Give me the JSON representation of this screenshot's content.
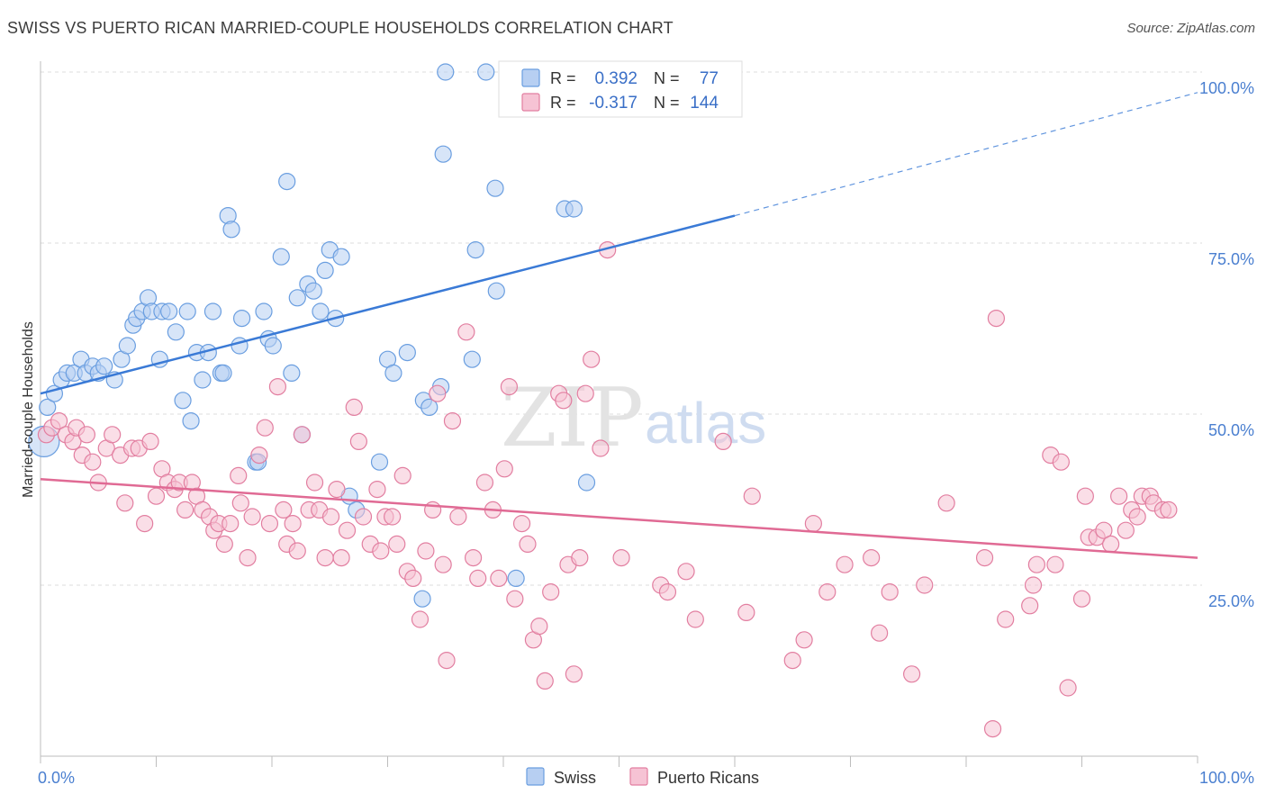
{
  "title": "SWISS VS PUERTO RICAN MARRIED-COUPLE HOUSEHOLDS CORRELATION CHART",
  "source": "Source: ZipAtlas.com",
  "watermark": {
    "zip": "ZIP",
    "atlas": "atlas"
  },
  "legend": {
    "r_label": "R =",
    "n_label": "N =",
    "items": [
      {
        "name": "Swiss",
        "r": "0.392",
        "n": "77",
        "color": "#6a9ee0",
        "fill": "#b7cff2"
      },
      {
        "name": "Puerto Ricans",
        "r": "-0.317",
        "n": "144",
        "color": "#e27ea0",
        "fill": "#f6c3d4"
      }
    ]
  },
  "chart_data": {
    "type": "scatter",
    "ylabel": "Married-couple Households",
    "xlabel": "",
    "x_tick_labels": [
      "0.0%",
      "100.0%"
    ],
    "y_tick_labels": [
      {
        "value": 25,
        "label": "25.0%"
      },
      {
        "value": 50,
        "label": "50.0%"
      },
      {
        "value": 75,
        "label": "75.0%"
      },
      {
        "value": 100,
        "label": "100.0%"
      }
    ],
    "xlim": [
      0,
      100
    ],
    "ylim": [
      0,
      100
    ],
    "grid": true,
    "legend_position": "top-center",
    "series": [
      {
        "name": "Swiss",
        "color": "#3a7ad6",
        "points": [
          [
            0.3,
            46
          ],
          [
            0.6,
            51
          ],
          [
            1.2,
            53
          ],
          [
            1.8,
            55
          ],
          [
            2.3,
            56
          ],
          [
            2.9,
            56
          ],
          [
            3.5,
            58
          ],
          [
            3.9,
            56
          ],
          [
            4.5,
            57
          ],
          [
            5.0,
            56
          ],
          [
            5.5,
            57
          ],
          [
            6.4,
            55
          ],
          [
            7.0,
            58
          ],
          [
            7.5,
            60
          ],
          [
            8.0,
            63
          ],
          [
            8.3,
            64
          ],
          [
            8.8,
            65
          ],
          [
            9.3,
            67
          ],
          [
            9.6,
            65
          ],
          [
            10.3,
            58
          ],
          [
            10.5,
            65
          ],
          [
            11.1,
            65
          ],
          [
            11.7,
            62
          ],
          [
            12.3,
            52
          ],
          [
            12.7,
            65
          ],
          [
            13.0,
            49
          ],
          [
            13.5,
            59
          ],
          [
            14.0,
            55
          ],
          [
            14.5,
            59
          ],
          [
            14.9,
            65
          ],
          [
            15.6,
            56
          ],
          [
            15.8,
            56
          ],
          [
            16.2,
            79
          ],
          [
            16.5,
            77
          ],
          [
            17.2,
            60
          ],
          [
            17.4,
            64
          ],
          [
            18.6,
            43
          ],
          [
            18.8,
            43
          ],
          [
            19.3,
            65
          ],
          [
            19.7,
            61
          ],
          [
            20.1,
            60
          ],
          [
            20.8,
            73
          ],
          [
            21.3,
            84
          ],
          [
            21.7,
            56
          ],
          [
            22.2,
            67
          ],
          [
            22.6,
            47
          ],
          [
            23.1,
            69
          ],
          [
            23.6,
            68
          ],
          [
            24.2,
            65
          ],
          [
            24.6,
            71
          ],
          [
            25.0,
            74
          ],
          [
            25.5,
            64
          ],
          [
            26.0,
            73
          ],
          [
            26.7,
            38
          ],
          [
            27.3,
            36
          ],
          [
            29.3,
            43
          ],
          [
            30.0,
            58
          ],
          [
            30.5,
            56
          ],
          [
            31.7,
            59
          ],
          [
            33.1,
            52
          ],
          [
            33.6,
            51
          ],
          [
            34.6,
            54
          ],
          [
            34.8,
            88
          ],
          [
            37.3,
            58
          ],
          [
            37.6,
            74
          ],
          [
            39.4,
            68
          ],
          [
            39.3,
            83
          ],
          [
            41.1,
            26
          ],
          [
            41.8,
            100
          ],
          [
            44.5,
            100
          ],
          [
            45.5,
            100
          ],
          [
            45.3,
            80
          ],
          [
            46.1,
            80
          ],
          [
            47.2,
            40
          ],
          [
            33.0,
            23
          ],
          [
            35.0,
            100
          ],
          [
            38.5,
            100
          ]
        ]
      },
      {
        "name": "Puerto Ricans",
        "color": "#e06a94",
        "points": [
          [
            0.5,
            47
          ],
          [
            1.0,
            48
          ],
          [
            1.6,
            49
          ],
          [
            2.2,
            47
          ],
          [
            2.8,
            46
          ],
          [
            3.1,
            48
          ],
          [
            3.6,
            44
          ],
          [
            4.0,
            47
          ],
          [
            4.5,
            43
          ],
          [
            5.0,
            40
          ],
          [
            5.7,
            45
          ],
          [
            6.2,
            47
          ],
          [
            6.9,
            44
          ],
          [
            7.3,
            37
          ],
          [
            7.9,
            45
          ],
          [
            8.5,
            45
          ],
          [
            9.0,
            34
          ],
          [
            9.5,
            46
          ],
          [
            10.0,
            38
          ],
          [
            10.5,
            42
          ],
          [
            11.0,
            40
          ],
          [
            11.6,
            39
          ],
          [
            12.0,
            40
          ],
          [
            12.5,
            36
          ],
          [
            13.1,
            40
          ],
          [
            13.5,
            38
          ],
          [
            14.0,
            36
          ],
          [
            14.6,
            35
          ],
          [
            15.0,
            33
          ],
          [
            15.4,
            34
          ],
          [
            15.9,
            31
          ],
          [
            16.4,
            34
          ],
          [
            17.1,
            41
          ],
          [
            17.3,
            37
          ],
          [
            17.9,
            29
          ],
          [
            18.3,
            35
          ],
          [
            18.9,
            44
          ],
          [
            19.4,
            48
          ],
          [
            19.8,
            34
          ],
          [
            20.5,
            54
          ],
          [
            21.0,
            36
          ],
          [
            21.3,
            31
          ],
          [
            21.8,
            34
          ],
          [
            22.2,
            30
          ],
          [
            22.6,
            47
          ],
          [
            23.2,
            36
          ],
          [
            23.7,
            40
          ],
          [
            24.1,
            36
          ],
          [
            24.6,
            29
          ],
          [
            25.1,
            35
          ],
          [
            25.6,
            39
          ],
          [
            26.0,
            29
          ],
          [
            26.5,
            33
          ],
          [
            27.1,
            51
          ],
          [
            27.5,
            46
          ],
          [
            27.9,
            35
          ],
          [
            28.5,
            31
          ],
          [
            29.1,
            39
          ],
          [
            29.4,
            30
          ],
          [
            29.8,
            35
          ],
          [
            30.4,
            35
          ],
          [
            30.8,
            31
          ],
          [
            31.3,
            41
          ],
          [
            31.7,
            27
          ],
          [
            32.2,
            26
          ],
          [
            32.8,
            20
          ],
          [
            33.3,
            30
          ],
          [
            33.9,
            36
          ],
          [
            34.3,
            53
          ],
          [
            34.8,
            28
          ],
          [
            35.1,
            14
          ],
          [
            35.6,
            49
          ],
          [
            36.1,
            35
          ],
          [
            36.8,
            62
          ],
          [
            37.4,
            29
          ],
          [
            37.8,
            26
          ],
          [
            38.4,
            40
          ],
          [
            39.1,
            36
          ],
          [
            39.6,
            26
          ],
          [
            40.1,
            42
          ],
          [
            40.5,
            54
          ],
          [
            41.0,
            23
          ],
          [
            41.6,
            34
          ],
          [
            42.1,
            31
          ],
          [
            42.6,
            17
          ],
          [
            43.1,
            19
          ],
          [
            43.6,
            11
          ],
          [
            44.1,
            24
          ],
          [
            44.8,
            53
          ],
          [
            45.2,
            52
          ],
          [
            45.6,
            28
          ],
          [
            46.1,
            12
          ],
          [
            46.6,
            29
          ],
          [
            47.1,
            53
          ],
          [
            47.6,
            58
          ],
          [
            48.4,
            45
          ],
          [
            49.0,
            74
          ],
          [
            50.2,
            29
          ],
          [
            53.6,
            25
          ],
          [
            54.2,
            24
          ],
          [
            55.8,
            27
          ],
          [
            56.6,
            20
          ],
          [
            59.0,
            46
          ],
          [
            61.0,
            21
          ],
          [
            61.5,
            38
          ],
          [
            65.0,
            14
          ],
          [
            66.0,
            17
          ],
          [
            66.8,
            34
          ],
          [
            68.0,
            24
          ],
          [
            69.5,
            28
          ],
          [
            71.8,
            29
          ],
          [
            72.5,
            18
          ],
          [
            73.4,
            24
          ],
          [
            75.3,
            12
          ],
          [
            76.4,
            25
          ],
          [
            78.3,
            37
          ],
          [
            81.6,
            29
          ],
          [
            82.3,
            4
          ],
          [
            82.6,
            64
          ],
          [
            83.4,
            20
          ],
          [
            85.5,
            22
          ],
          [
            85.8,
            25
          ],
          [
            86.1,
            28
          ],
          [
            87.3,
            44
          ],
          [
            87.7,
            28
          ],
          [
            88.2,
            43
          ],
          [
            88.8,
            10
          ],
          [
            90.0,
            23
          ],
          [
            90.3,
            38
          ],
          [
            90.6,
            32
          ],
          [
            91.3,
            32
          ],
          [
            91.9,
            33
          ],
          [
            92.5,
            31
          ],
          [
            93.2,
            38
          ],
          [
            93.8,
            33
          ],
          [
            94.3,
            36
          ],
          [
            94.8,
            35
          ],
          [
            95.2,
            38
          ],
          [
            95.9,
            38
          ],
          [
            96.2,
            37
          ],
          [
            97.0,
            36
          ],
          [
            97.5,
            36
          ]
        ]
      }
    ],
    "trend_lines": [
      {
        "series": "Swiss",
        "x_start": 0,
        "y_start": 53,
        "x_end": 60,
        "y_end": 79,
        "dashed_to_x": 100,
        "dashed_to_y": 97
      },
      {
        "series": "Puerto Ricans",
        "x_start": 0,
        "y_start": 40.5,
        "x_end": 100,
        "y_end": 29
      }
    ]
  }
}
